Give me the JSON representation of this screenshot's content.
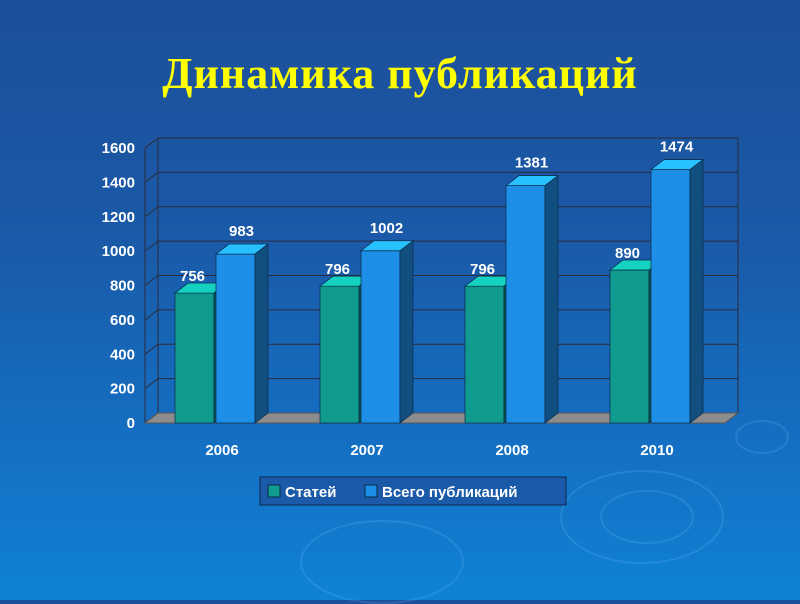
{
  "chart_data": {
    "type": "bar",
    "title": "Динамика публикаций",
    "categories": [
      "2006",
      "2007",
      "2008",
      "2010"
    ],
    "series": [
      {
        "name": "Статей",
        "values": [
          756,
          796,
          796,
          890
        ]
      },
      {
        "name": "Всего публикаций",
        "values": [
          983,
          1002,
          1381,
          1474
        ]
      }
    ],
    "data_labels": [
      [
        "756",
        "796",
        "796",
        "890"
      ],
      [
        "983",
        "1002",
        "1381",
        "1474"
      ]
    ],
    "yticks": [
      "0",
      "200",
      "400",
      "600",
      "800",
      "1000",
      "1200",
      "1400",
      "1600"
    ],
    "ylim": [
      0,
      1600
    ],
    "grid": true,
    "legend": "bottom",
    "colors": {
      "series1": "#0f9b8e",
      "series2": "#1d8fe6",
      "title": "#ffff00",
      "background": "#1a5aa8"
    }
  }
}
